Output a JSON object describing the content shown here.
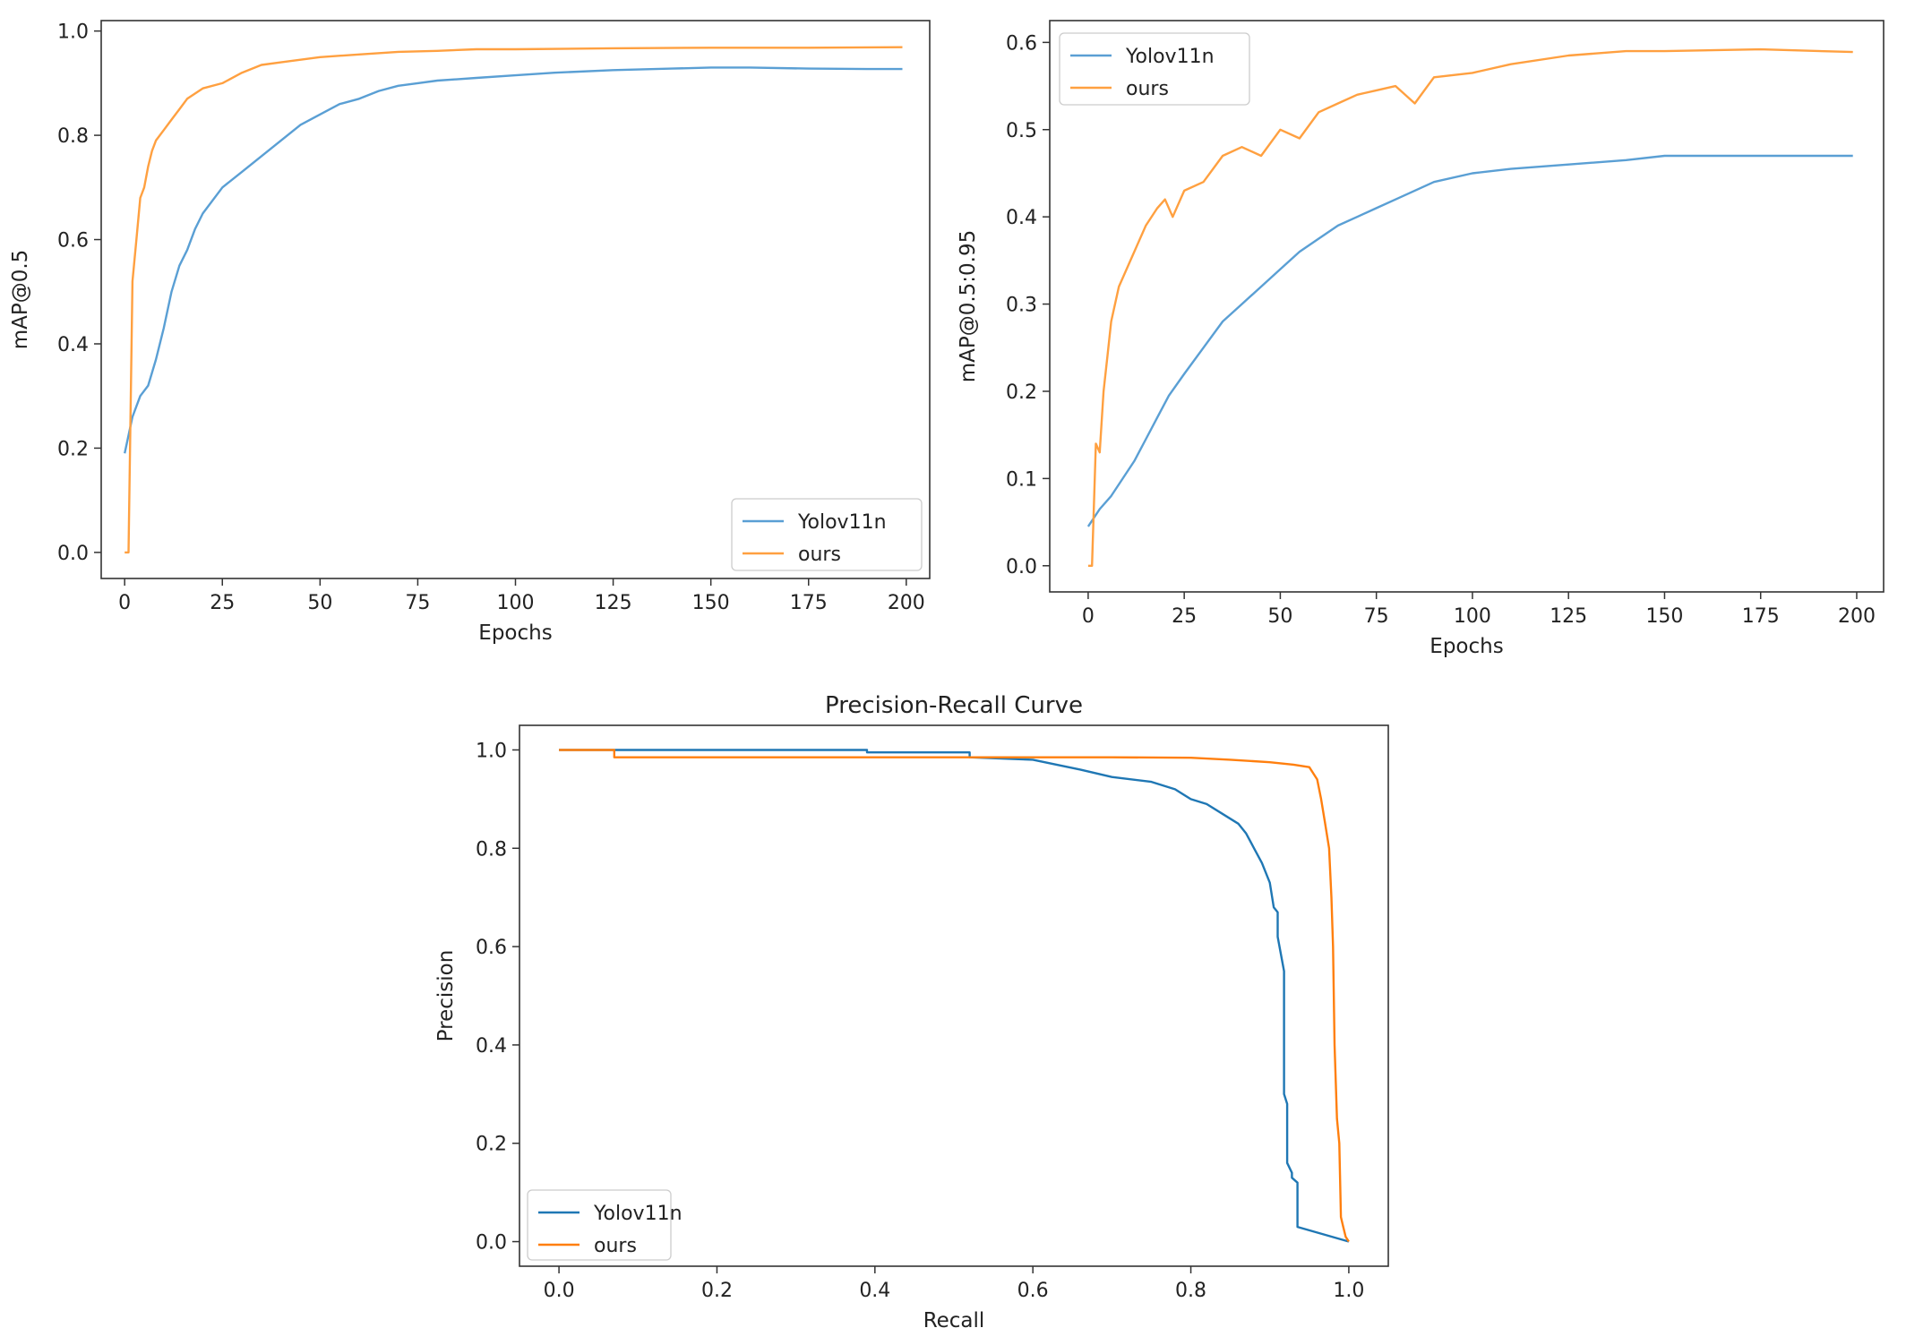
{
  "colors": {
    "yolov11n": "#1f77b4",
    "ours": "#ff7f0e",
    "axis": "#333333"
  },
  "chart_data": [
    {
      "id": "map50",
      "type": "line",
      "title": "",
      "xlabel": "Epochs",
      "ylabel": "mAP@0.5",
      "xlim": [
        -6,
        206
      ],
      "ylim": [
        -0.05,
        1.02
      ],
      "xticks": [
        0,
        25,
        50,
        75,
        100,
        125,
        150,
        175,
        200
      ],
      "yticks": [
        0.0,
        0.2,
        0.4,
        0.6,
        0.8,
        1.0
      ],
      "ytick_labels": [
        "0.0",
        "0.2",
        "0.4",
        "0.6",
        "0.8",
        "1.0"
      ],
      "grid": false,
      "legend": "lower-right",
      "legend_labels": [
        "Yolov11n",
        "ours"
      ],
      "series": [
        {
          "name": "Yolov11n",
          "color": "#5a9fd4",
          "x": [
            0,
            2,
            4,
            6,
            8,
            10,
            12,
            14,
            16,
            18,
            20,
            25,
            30,
            35,
            40,
            45,
            50,
            55,
            60,
            65,
            70,
            75,
            80,
            90,
            100,
            110,
            125,
            140,
            150,
            160,
            175,
            190,
            199
          ],
          "y": [
            0.19,
            0.26,
            0.3,
            0.32,
            0.37,
            0.43,
            0.5,
            0.55,
            0.58,
            0.62,
            0.65,
            0.7,
            0.73,
            0.76,
            0.79,
            0.82,
            0.84,
            0.86,
            0.87,
            0.885,
            0.895,
            0.9,
            0.905,
            0.91,
            0.915,
            0.92,
            0.925,
            0.928,
            0.93,
            0.93,
            0.928,
            0.927,
            0.927
          ]
        },
        {
          "name": "ours",
          "color": "#ffa040",
          "x": [
            0,
            1,
            2,
            3,
            4,
            5,
            6,
            7,
            8,
            10,
            12,
            14,
            16,
            18,
            20,
            25,
            30,
            35,
            40,
            50,
            60,
            70,
            80,
            90,
            100,
            125,
            150,
            175,
            199
          ],
          "y": [
            0.0,
            0.0,
            0.52,
            0.6,
            0.68,
            0.7,
            0.74,
            0.77,
            0.79,
            0.81,
            0.83,
            0.85,
            0.87,
            0.88,
            0.89,
            0.9,
            0.92,
            0.935,
            0.94,
            0.95,
            0.955,
            0.96,
            0.962,
            0.965,
            0.965,
            0.967,
            0.968,
            0.968,
            0.969
          ]
        }
      ]
    },
    {
      "id": "map5095",
      "type": "line",
      "title": "",
      "xlabel": "Epochs",
      "ylabel": "mAP@0.5:0.95",
      "xlim": [
        -10,
        207
      ],
      "ylim": [
        -0.03,
        0.625
      ],
      "xticks": [
        0,
        25,
        50,
        75,
        100,
        125,
        150,
        175,
        200
      ],
      "yticks": [
        0.0,
        0.1,
        0.2,
        0.3,
        0.4,
        0.5,
        0.6
      ],
      "ytick_labels": [
        "0.0",
        "0.1",
        "0.2",
        "0.3",
        "0.4",
        "0.5",
        "0.6"
      ],
      "grid": false,
      "legend": "upper-left",
      "legend_labels": [
        "Yolov11n",
        "ours"
      ],
      "series": [
        {
          "name": "Yolov11n",
          "color": "#5a9fd4",
          "x": [
            0,
            3,
            6,
            9,
            12,
            15,
            18,
            21,
            25,
            30,
            35,
            40,
            45,
            50,
            55,
            60,
            65,
            70,
            75,
            80,
            90,
            100,
            110,
            125,
            140,
            150,
            160,
            175,
            190,
            199
          ],
          "y": [
            0.045,
            0.065,
            0.08,
            0.1,
            0.12,
            0.145,
            0.17,
            0.195,
            0.22,
            0.25,
            0.28,
            0.3,
            0.32,
            0.34,
            0.36,
            0.375,
            0.39,
            0.4,
            0.41,
            0.42,
            0.44,
            0.45,
            0.455,
            0.46,
            0.465,
            0.47,
            0.47,
            0.47,
            0.47,
            0.47
          ]
        },
        {
          "name": "ours",
          "color": "#ffa040",
          "x": [
            0,
            1,
            2,
            3,
            4,
            5,
            6,
            8,
            10,
            12,
            15,
            18,
            20,
            22,
            25,
            30,
            35,
            40,
            45,
            50,
            55,
            60,
            65,
            70,
            75,
            80,
            85,
            90,
            100,
            110,
            125,
            140,
            150,
            175,
            199
          ],
          "y": [
            0.0,
            0.0,
            0.14,
            0.13,
            0.2,
            0.24,
            0.28,
            0.32,
            0.34,
            0.36,
            0.39,
            0.41,
            0.42,
            0.4,
            0.43,
            0.44,
            0.47,
            0.48,
            0.47,
            0.5,
            0.49,
            0.52,
            0.53,
            0.54,
            0.545,
            0.55,
            0.53,
            0.56,
            0.565,
            0.575,
            0.585,
            0.59,
            0.59,
            0.592,
            0.589
          ]
        }
      ]
    },
    {
      "id": "pr",
      "type": "line",
      "title": "Precision-Recall Curve",
      "xlabel": "Recall",
      "ylabel": "Precision",
      "xlim": [
        -0.05,
        1.05
      ],
      "ylim": [
        -0.05,
        1.05
      ],
      "xticks": [
        0.0,
        0.2,
        0.4,
        0.6,
        0.8,
        1.0
      ],
      "xtick_labels": [
        "0.0",
        "0.2",
        "0.4",
        "0.6",
        "0.8",
        "1.0"
      ],
      "yticks": [
        0.0,
        0.2,
        0.4,
        0.6,
        0.8,
        1.0
      ],
      "ytick_labels": [
        "0.0",
        "0.2",
        "0.4",
        "0.6",
        "0.8",
        "1.0"
      ],
      "grid": false,
      "legend": "lower-left",
      "legend_labels": [
        "Yolov11n",
        "ours"
      ],
      "series": [
        {
          "name": "Yolov11n",
          "color": "#1f77b4",
          "x": [
            0.0,
            0.07,
            0.39,
            0.39,
            0.52,
            0.52,
            0.6,
            0.63,
            0.66,
            0.7,
            0.75,
            0.78,
            0.8,
            0.82,
            0.84,
            0.86,
            0.87,
            0.88,
            0.89,
            0.9,
            0.905,
            0.91,
            0.91,
            0.918,
            0.918,
            0.922,
            0.922,
            0.928,
            0.928,
            0.935,
            0.935,
            1.0
          ],
          "y": [
            1.0,
            1.0,
            1.0,
            0.995,
            0.995,
            0.985,
            0.98,
            0.97,
            0.96,
            0.945,
            0.935,
            0.92,
            0.9,
            0.89,
            0.87,
            0.85,
            0.83,
            0.8,
            0.77,
            0.73,
            0.68,
            0.67,
            0.62,
            0.55,
            0.3,
            0.28,
            0.16,
            0.14,
            0.13,
            0.12,
            0.03,
            0.0
          ]
        },
        {
          "name": "ours",
          "color": "#ff7f0e",
          "x": [
            0.0,
            0.07,
            0.07,
            0.6,
            0.7,
            0.8,
            0.85,
            0.9,
            0.93,
            0.95,
            0.96,
            0.965,
            0.97,
            0.975,
            0.978,
            0.98,
            0.982,
            0.985,
            0.988,
            0.99,
            0.993,
            0.996,
            1.0
          ],
          "y": [
            1.0,
            1.0,
            0.985,
            0.985,
            0.985,
            0.984,
            0.98,
            0.975,
            0.97,
            0.965,
            0.94,
            0.9,
            0.85,
            0.8,
            0.7,
            0.6,
            0.4,
            0.25,
            0.2,
            0.05,
            0.03,
            0.01,
            0.0
          ]
        }
      ]
    }
  ]
}
